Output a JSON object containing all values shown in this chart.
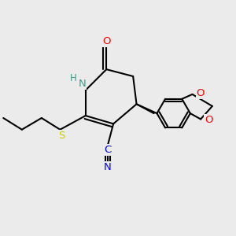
{
  "background_color": "#ebebeb",
  "bond_color": "#000000",
  "atom_colors": {
    "N": "#3d9d8a",
    "O": "#ff0000",
    "S": "#cccc00",
    "CN_blue": "#0000ff"
  },
  "bond_lw": 1.5,
  "font_size": 9.5,
  "xlim": [
    0,
    10
  ],
  "ylim": [
    0,
    10
  ]
}
